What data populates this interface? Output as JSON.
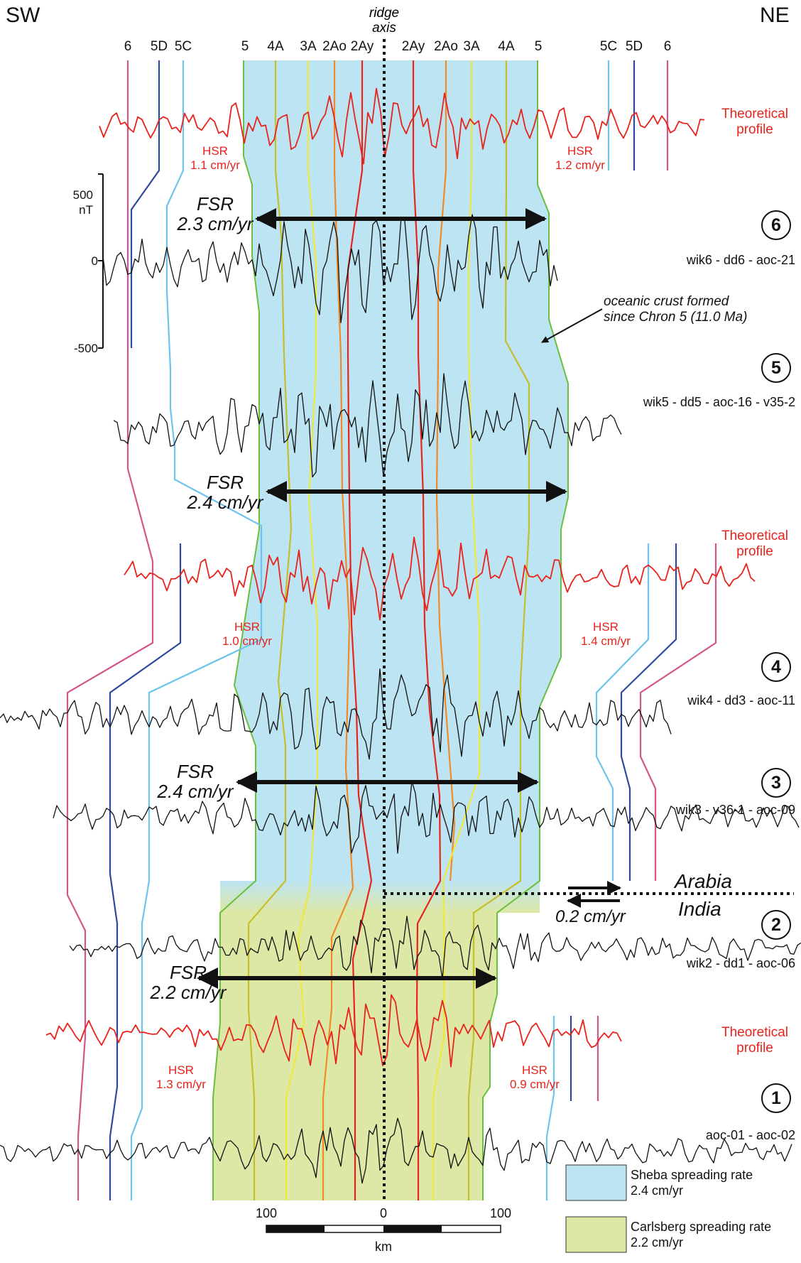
{
  "corners": {
    "left": "SW",
    "right": "NE"
  },
  "axis_title": [
    "ridge",
    "axis"
  ],
  "chrons_left": [
    "6",
    "5D",
    "5C",
    "5",
    "4A",
    "3A",
    "2Ao",
    "2Ay"
  ],
  "chrons_right": [
    "2Ay",
    "2Ao",
    "3A",
    "4A",
    "5",
    "5C",
    "5D",
    "6"
  ],
  "theoretical": [
    "Theoretical",
    "profile"
  ],
  "hsr": {
    "top_left": [
      "HSR",
      "1.1 cm/yr"
    ],
    "top_right": [
      "HSR",
      "1.2 cm/yr"
    ],
    "mid_left": [
      "HSR",
      "1.0 cm/yr"
    ],
    "mid_right": [
      "HSR",
      "1.4 cm/yr"
    ],
    "bot_left": [
      "HSR",
      "1.3 cm/yr"
    ],
    "bot_right": [
      "HSR",
      "0.9 cm/yr"
    ]
  },
  "fsr": {
    "p6": [
      "FSR",
      "2.3 cm/yr"
    ],
    "p5": [
      "FSR",
      "2.4 cm/yr"
    ],
    "p3": [
      "FSR",
      "2.4 cm/yr"
    ],
    "p2": [
      "FSR",
      "2.2 cm/yr"
    ]
  },
  "profiles": [
    {
      "num": "6",
      "label": "wik6 - dd6 - aoc-21"
    },
    {
      "num": "5",
      "label": "wik5 - dd5 - aoc-16 - v35-2"
    },
    {
      "num": "4",
      "label": "wik4 - dd3 - aoc-11"
    },
    {
      "num": "3",
      "label": "wik3 - v36-1 - aoc-09"
    },
    {
      "num": "2",
      "label": "wik2 - dd1 - aoc-06"
    },
    {
      "num": "1",
      "label": "aoc-01 - aoc-02"
    }
  ],
  "scale_bar": {
    "top": "500",
    "unit": "nT",
    "zero": "0",
    "bottom": "-500"
  },
  "annotation": [
    "oceanic crust formed",
    "since Chron 5 (11.0 Ma)"
  ],
  "plates": {
    "upper": "Arabia",
    "lower": "India",
    "rate": "0.2 cm/yr"
  },
  "km_scale": {
    "left": "100",
    "center": "0",
    "right": "100",
    "unit": "km"
  },
  "legend": [
    {
      "lines": [
        "Sheba spreading rate",
        "2.4 cm/yr"
      ],
      "color": "#bde4f2"
    },
    {
      "lines": [
        "Carlsberg spreading rate",
        "2.2 cm/yr"
      ],
      "color": "#dde8a6"
    }
  ],
  "colors": {
    "theoretical": "#e8231c",
    "observed": "#111111",
    "chron6": "#d4558c",
    "chron5D": "#2e4a9e",
    "chron5C": "#6cc4ec",
    "chron5": "#6abf3c",
    "chron4A": "#c8bd2a",
    "chron3A": "#f1e63a",
    "chron2Ao": "#f08a24",
    "chron2Ay": "#e8231c"
  }
}
